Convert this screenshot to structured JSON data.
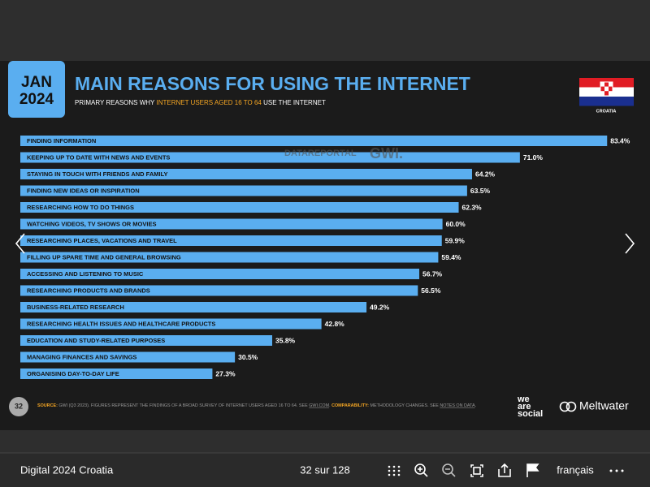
{
  "viewer": {
    "document_title": "Digital 2024 Croatia",
    "page_indicator": "32 sur 128",
    "language": "français"
  },
  "slide": {
    "badge_month": "JAN",
    "badge_year": "2024",
    "subtitle": {
      "before": "PRIMARY REASONS WHY ",
      "highlight": "INTERNET USERS AGED 16 TO 64",
      "after": " USE THE INTERNET"
    },
    "country": "CROATIA",
    "watermark": {
      "left": "DATAREPORTAL",
      "right": "GWI."
    },
    "page_number": "32",
    "source": {
      "label": "SOURCE:",
      "text": " GWI (Q3 2023). FIGURES REPRESENT THE FINDINGS OF A BROAD SURVEY OF INTERNET USERS AGED 16 TO 64. SEE ",
      "link": "GWI.COM",
      "dot": ". ",
      "comp_label": "COMPARABILITY:",
      "comp_text": " METHODOLOGY CHANGES. SEE ",
      "comp_link": "NOTES ON DATA",
      "end": "."
    },
    "logo_lines": [
      "we",
      "are",
      "social"
    ],
    "brand": "Meltwater"
  },
  "chart_data": {
    "type": "bar",
    "orientation": "horizontal",
    "title": "MAIN REASONS FOR USING THE INTERNET",
    "categories": [
      "FINDING INFORMATION",
      "KEEPING UP TO DATE WITH NEWS AND EVENTS",
      "STAYING IN TOUCH WITH FRIENDS AND FAMILY",
      "FINDING NEW IDEAS OR INSPIRATION",
      "RESEARCHING HOW TO DO THINGS",
      "WATCHING VIDEOS, TV SHOWS OR MOVIES",
      "RESEARCHING PLACES, VACATIONS AND TRAVEL",
      "FILLING UP SPARE TIME AND GENERAL BROWSING",
      "ACCESSING AND LISTENING TO MUSIC",
      "RESEARCHING PRODUCTS AND BRANDS",
      "BUSINESS-RELATED RESEARCH",
      "RESEARCHING HEALTH ISSUES AND HEALTHCARE PRODUCTS",
      "EDUCATION AND STUDY-RELATED PURPOSES",
      "MANAGING FINANCES AND SAVINGS",
      "ORGANISING DAY-TO-DAY LIFE"
    ],
    "values": [
      83.4,
      71.0,
      64.2,
      63.5,
      62.3,
      60.0,
      59.9,
      59.4,
      56.7,
      56.5,
      49.2,
      42.8,
      35.8,
      30.5,
      27.3
    ],
    "value_labels": [
      "83.4%",
      "71.0%",
      "64.2%",
      "63.5%",
      "62.3%",
      "60.0%",
      "59.9%",
      "59.4%",
      "56.7%",
      "56.5%",
      "49.2%",
      "42.8%",
      "35.8%",
      "30.5%",
      "27.3%"
    ],
    "color": "#5aaef0"
  }
}
